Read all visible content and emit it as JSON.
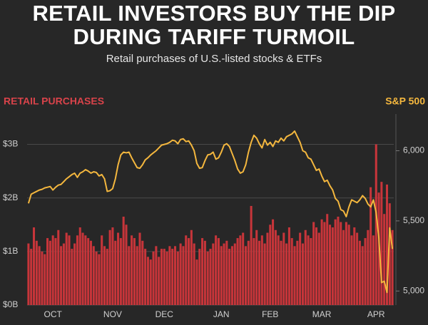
{
  "chart_data": {
    "type": "bar_line",
    "title": "RETAIL INVESTORS BUY THE DIP DURING TARIFF TURMOIL",
    "subtitle": "Retail purchases of U.S.-listed stocks & ETFs",
    "y_label": "RETAIL PURCHASES",
    "y2_label": "S&P 500",
    "categories": [
      null,
      null,
      null,
      null,
      null,
      null,
      null,
      null,
      null,
      "OCT",
      null,
      null,
      null,
      null,
      null,
      null,
      null,
      null,
      null,
      null,
      null,
      null,
      null,
      null,
      null,
      null,
      null,
      null,
      null,
      null,
      null,
      "NOV",
      null,
      null,
      null,
      null,
      null,
      null,
      null,
      null,
      null,
      null,
      null,
      null,
      null,
      null,
      null,
      null,
      null,
      null,
      "DEC",
      null,
      null,
      null,
      null,
      null,
      null,
      null,
      null,
      null,
      null,
      null,
      null,
      null,
      null,
      null,
      null,
      null,
      null,
      null,
      null,
      "JAN",
      null,
      null,
      null,
      null,
      null,
      null,
      null,
      null,
      null,
      null,
      null,
      null,
      null,
      null,
      null,
      null,
      null,
      "FEB",
      null,
      null,
      null,
      null,
      null,
      null,
      null,
      null,
      null,
      null,
      null,
      null,
      null,
      null,
      null,
      null,
      null,
      null,
      "MAR",
      null,
      null,
      null,
      null,
      null,
      null,
      null,
      null,
      null,
      null,
      null,
      null,
      null,
      null,
      null,
      null,
      null,
      null,
      null,
      "APR",
      null,
      null,
      null,
      null,
      null,
      null
    ],
    "series": [
      {
        "name": "RETAIL PURCHASES",
        "type": "bar",
        "color": "#c7353a",
        "values": [
          1.15,
          1.05,
          1.45,
          1.2,
          1.1,
          1.0,
          0.95,
          1.25,
          1.2,
          1.3,
          1.25,
          1.4,
          1.1,
          1.15,
          1.35,
          1.3,
          1.05,
          1.15,
          1.3,
          1.45,
          1.35,
          1.3,
          1.25,
          1.2,
          1.1,
          1.0,
          0.95,
          1.3,
          1.1,
          1.05,
          1.4,
          1.45,
          1.2,
          1.35,
          1.25,
          1.65,
          1.5,
          1.1,
          1.3,
          1.25,
          1.1,
          1.35,
          1.2,
          1.05,
          0.9,
          0.85,
          1.0,
          1.1,
          0.9,
          1.05,
          1.05,
          1.0,
          1.1,
          1.05,
          1.1,
          1.0,
          1.15,
          1.1,
          1.3,
          1.25,
          1.4,
          1.15,
          0.85,
          1.05,
          1.25,
          1.2,
          1.0,
          1.05,
          1.15,
          1.3,
          1.25,
          1.1,
          1.15,
          1.2,
          1.05,
          1.1,
          1.15,
          1.25,
          1.3,
          1.35,
          1.1,
          1.2,
          1.85,
          1.25,
          1.4,
          1.2,
          1.3,
          1.15,
          1.35,
          1.5,
          1.6,
          1.4,
          1.3,
          1.2,
          1.35,
          1.15,
          1.45,
          1.25,
          1.1,
          1.2,
          1.35,
          1.15,
          1.4,
          1.3,
          1.25,
          1.55,
          1.45,
          1.35,
          1.6,
          1.55,
          1.7,
          1.5,
          1.45,
          1.6,
          1.65,
          1.55,
          1.4,
          1.55,
          1.5,
          1.3,
          1.45,
          1.35,
          1.2,
          1.1,
          1.25,
          1.4,
          2.2,
          1.3,
          3.0,
          2.1,
          2.3,
          1.7,
          2.25,
          1.9,
          1.4
        ]
      },
      {
        "name": "S&P 500",
        "type": "line",
        "axis": "y2",
        "color": "#f4b73e",
        "values": [
          5625,
          5690,
          5700,
          5710,
          5720,
          5725,
          5735,
          5740,
          5745,
          5720,
          5740,
          5755,
          5760,
          5780,
          5800,
          5815,
          5830,
          5840,
          5810,
          5840,
          5850,
          5865,
          5855,
          5840,
          5850,
          5845,
          5820,
          5830,
          5800,
          5710,
          5715,
          5730,
          5800,
          5900,
          5970,
          5990,
          5985,
          5990,
          5950,
          5915,
          5880,
          5875,
          5900,
          5935,
          5950,
          5970,
          5985,
          6000,
          6020,
          6040,
          6045,
          6050,
          6060,
          6075,
          6070,
          6050,
          6080,
          6085,
          6065,
          6070,
          6040,
          6000,
          5910,
          5875,
          5880,
          5930,
          5970,
          5975,
          5990,
          5940,
          5950,
          5990,
          6040,
          6050,
          6030,
          5980,
          5930,
          5870,
          5840,
          5850,
          5900,
          5990,
          6060,
          6110,
          6090,
          6050,
          6020,
          6080,
          6040,
          6060,
          6030,
          6070,
          6060,
          6090,
          6070,
          6100,
          6110,
          6120,
          6140,
          6100,
          6060,
          6000,
          5990,
          5950,
          5940,
          5900,
          5860,
          5870,
          5820,
          5780,
          5790,
          5750,
          5720,
          5660,
          5640,
          5580,
          5570,
          5530,
          5600,
          5650,
          5640,
          5630,
          5650,
          5680,
          5660,
          5620,
          5600,
          5650,
          5560,
          5380,
          5060,
          5070,
          4990,
          5450,
          5300
        ]
      }
    ],
    "ylim": [
      0,
      3.3
    ],
    "yticks": [
      {
        "value": 0,
        "label": "$0B"
      },
      {
        "value": 1,
        "label": "$1B"
      },
      {
        "value": 2,
        "label": "$2B"
      },
      {
        "value": 3,
        "label": "$3B"
      }
    ],
    "y2lim": [
      4900,
      6160
    ],
    "y2ticks": [
      {
        "value": 5000,
        "label": "5,000"
      },
      {
        "value": 5500,
        "label": "5,500"
      },
      {
        "value": 6000,
        "label": "6,000"
      }
    ],
    "grid": true,
    "background": "#272727"
  }
}
